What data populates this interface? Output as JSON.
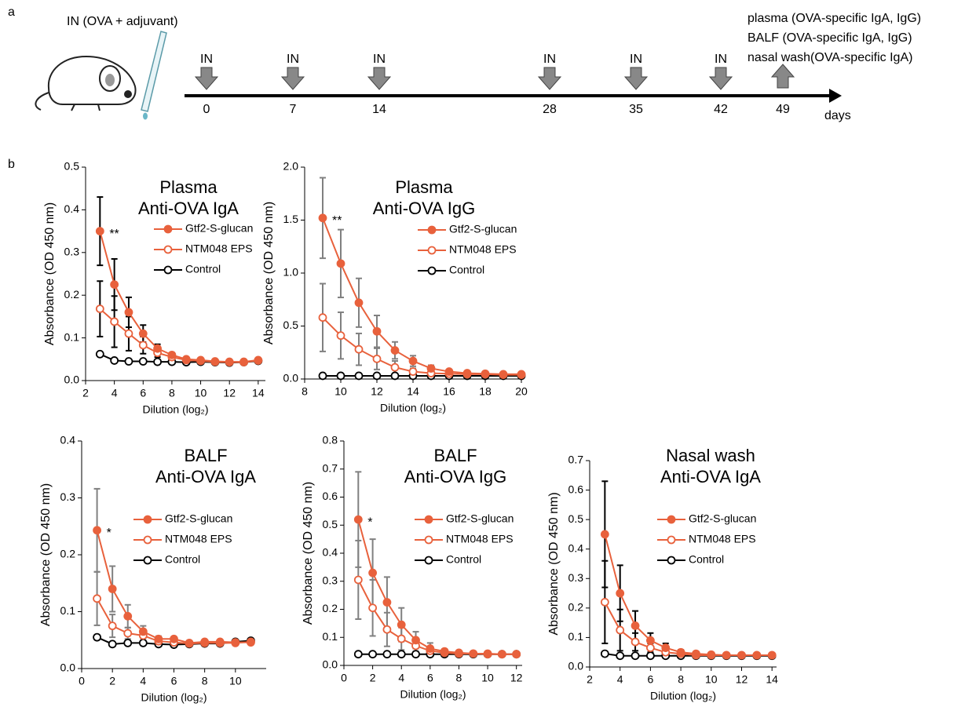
{
  "panel_labels": [
    "a",
    "b"
  ],
  "timeline": {
    "route_label": "IN (OVA + adjuvant)",
    "doses": [
      {
        "label": "IN",
        "day": 0
      },
      {
        "label": "IN",
        "day": 7
      },
      {
        "label": "IN",
        "day": 14
      },
      {
        "label": "IN",
        "day": 28
      },
      {
        "label": "IN",
        "day": 35
      },
      {
        "label": "IN",
        "day": 42
      }
    ],
    "sampling_day": 49,
    "samples": [
      "plasma (OVA-specific IgA, IgG)",
      "BALF (OVA-specific IgA, IgG)",
      "nasal wash(OVA-specific IgA)"
    ],
    "axis_label": "days"
  },
  "chart_data": [
    {
      "type": "line",
      "title": "Plasma",
      "subtitle": "Anti-OVA IgA",
      "x_label": "Dilution (log₂)",
      "y_label": "Absorbance (OD 450 nm)",
      "annotation": "**",
      "error_color": "#000000",
      "x": [
        3,
        4,
        5,
        6,
        7,
        8,
        9,
        10,
        11,
        12,
        13,
        14
      ],
      "xlim": [
        2,
        14.5
      ],
      "xticks": [
        2,
        4,
        6,
        8,
        10,
        12,
        14
      ],
      "ylim": [
        0,
        0.5
      ],
      "yticks": [
        {
          "value": 0,
          "label": "0.0"
        },
        0.1,
        0.2,
        0.3,
        0.4,
        0.5
      ],
      "series": [
        {
          "name": "Gtf2-S-glucan",
          "color": "#e8613c",
          "marker": "filled",
          "values": [
            0.35,
            0.225,
            0.16,
            0.11,
            0.075,
            0.06,
            0.05,
            0.048,
            0.045,
            0.044,
            0.044,
            0.048
          ],
          "errors": [
            0.08,
            0.06,
            0.035,
            0.02,
            0.01,
            0.005,
            0.004,
            0.004,
            0.003,
            0.003,
            0.003,
            0.003
          ]
        },
        {
          "name": "NTM048 EPS",
          "color": "#e8613c",
          "marker": "open",
          "values": [
            0.168,
            0.138,
            0.11,
            0.083,
            0.065,
            0.055,
            0.048,
            0.046,
            0.044,
            0.043,
            0.043,
            0.047
          ],
          "errors": [
            0.065,
            0.06,
            0.04,
            0.02,
            0.01,
            0.005,
            0.004,
            0.003,
            0.003,
            0.003,
            0.003,
            0.003
          ]
        },
        {
          "name": "Control",
          "color": "#000000",
          "marker": "open",
          "values": [
            0.062,
            0.047,
            0.045,
            0.045,
            0.044,
            0.044,
            0.043,
            0.044,
            0.043,
            0.042,
            0.043,
            0.046
          ]
        }
      ]
    },
    {
      "type": "line",
      "title": "Plasma",
      "subtitle": "Anti-OVA IgG",
      "x_label": "Dilution (log₂)",
      "y_label": "Absorbance (OD 450 nm)",
      "annotation": "**",
      "error_color": "#808080",
      "x": [
        9,
        10,
        11,
        12,
        13,
        14,
        15,
        16,
        17,
        18,
        19,
        20
      ],
      "xlim": [
        8,
        20
      ],
      "xticks": [
        8,
        10,
        12,
        14,
        16,
        18,
        20
      ],
      "ylim": [
        0,
        2
      ],
      "yticks": [
        {
          "value": 0,
          "label": "0.0"
        },
        0.5,
        {
          "value": 1,
          "label": "1.0"
        },
        1.5,
        {
          "value": 2,
          "label": "2.0"
        }
      ],
      "series": [
        {
          "name": "Gtf2-S-glucan",
          "color": "#e8613c",
          "marker": "filled",
          "values": [
            1.52,
            1.09,
            0.72,
            0.45,
            0.27,
            0.17,
            0.1,
            0.07,
            0.055,
            0.05,
            0.045,
            0.045
          ],
          "errors": [
            0.38,
            0.32,
            0.23,
            0.15,
            0.08,
            0.05,
            0.03,
            0.015,
            0.01,
            0.01,
            0.01,
            0.01
          ]
        },
        {
          "name": "NTM048 EPS",
          "color": "#e8613c",
          "marker": "open",
          "values": [
            0.58,
            0.41,
            0.28,
            0.19,
            0.11,
            0.07,
            0.055,
            0.05,
            0.045,
            0.045,
            0.04,
            0.04
          ],
          "errors": [
            0.32,
            0.22,
            0.15,
            0.1,
            0.06,
            0.03,
            0.015,
            0.01,
            0.01,
            0.01,
            0.01,
            0.01
          ]
        },
        {
          "name": "Control",
          "color": "#000000",
          "marker": "open",
          "values": [
            0.03,
            0.03,
            0.03,
            0.03,
            0.03,
            0.03,
            0.03,
            0.03,
            0.03,
            0.03,
            0.03,
            0.03
          ]
        }
      ]
    },
    {
      "type": "line",
      "title": "BALF",
      "subtitle": "Anti-OVA IgA",
      "x_label": "Dilution (log₂)",
      "y_label": "Absorbance (OD 450 nm)",
      "annotation": "*",
      "error_color": "#808080",
      "x": [
        1,
        2,
        3,
        4,
        5,
        6,
        7,
        8,
        9,
        10,
        11
      ],
      "xlim": [
        0,
        12
      ],
      "xticks": [
        0,
        2,
        4,
        6,
        8,
        10
      ],
      "ylim": [
        0,
        0.4
      ],
      "yticks": [
        {
          "value": 0,
          "label": "0.0"
        },
        0.1,
        0.2,
        0.3,
        0.4
      ],
      "series": [
        {
          "name": "Gtf2-S-glucan",
          "color": "#e8613c",
          "marker": "filled",
          "values": [
            0.243,
            0.14,
            0.092,
            0.065,
            0.052,
            0.052,
            0.045,
            0.047,
            0.047,
            0.046,
            0.046
          ],
          "errors": [
            0.073,
            0.04,
            0.02,
            0.01,
            0.005,
            0.004,
            0.003,
            0.003,
            0.003,
            0.003,
            0.003
          ]
        },
        {
          "name": "NTM048 EPS",
          "color": "#e8613c",
          "marker": "open",
          "values": [
            0.123,
            0.075,
            0.062,
            0.058,
            0.048,
            0.046,
            0.044,
            0.045,
            0.045,
            0.045,
            0.047
          ],
          "errors": [
            0.047,
            0.02,
            0.01,
            0.005,
            0.004,
            0.003,
            0.003,
            0.003,
            0.003,
            0.003,
            0.003
          ]
        },
        {
          "name": "Control",
          "color": "#000000",
          "marker": "open",
          "values": [
            0.055,
            0.043,
            0.045,
            0.045,
            0.043,
            0.042,
            0.043,
            0.044,
            0.044,
            0.047,
            0.049
          ]
        }
      ]
    },
    {
      "type": "line",
      "title": "BALF",
      "subtitle": "Anti-OVA IgG",
      "x_label": "Dilution (log₂)",
      "y_label": "Absorbance (OD 450 nm)",
      "annotation": "*",
      "error_color": "#808080",
      "x": [
        1,
        2,
        3,
        4,
        5,
        6,
        7,
        8,
        9,
        10,
        11,
        12
      ],
      "xlim": [
        0,
        12.4
      ],
      "xticks": [
        0,
        2,
        4,
        6,
        8,
        10,
        12
      ],
      "ylim": [
        0,
        0.8
      ],
      "yticks": [
        {
          "value": 0,
          "label": "0.0"
        },
        0.1,
        0.2,
        0.3,
        0.4,
        0.5,
        0.6,
        0.7,
        0.8
      ],
      "series": [
        {
          "name": "Gtf2-S-glucan",
          "color": "#e8613c",
          "marker": "filled",
          "values": [
            0.52,
            0.33,
            0.225,
            0.145,
            0.09,
            0.06,
            0.05,
            0.045,
            0.042,
            0.042,
            0.04,
            0.04
          ],
          "errors": [
            0.17,
            0.12,
            0.09,
            0.06,
            0.03,
            0.02,
            0.008,
            0.005,
            0.004,
            0.004,
            0.003,
            0.003
          ]
        },
        {
          "name": "NTM048 EPS",
          "color": "#e8613c",
          "marker": "open",
          "values": [
            0.305,
            0.205,
            0.128,
            0.095,
            0.07,
            0.052,
            0.045,
            0.042,
            0.042,
            0.04,
            0.04,
            0.04
          ],
          "errors": [
            0.14,
            0.1,
            0.06,
            0.04,
            0.02,
            0.008,
            0.005,
            0.004,
            0.004,
            0.003,
            0.003,
            0.003
          ]
        },
        {
          "name": "Control",
          "color": "#000000",
          "marker": "open",
          "values": [
            0.04,
            0.04,
            0.04,
            0.04,
            0.04,
            0.04,
            0.04,
            0.04,
            0.04,
            0.04,
            0.04,
            0.04
          ]
        }
      ]
    },
    {
      "type": "line",
      "title": "Nasal wash",
      "subtitle": "Anti-OVA IgA",
      "x_label": "Dilution (log₂)",
      "y_label": "Absorbance (OD 450 nm)",
      "error_color": "#000000",
      "x": [
        3,
        4,
        5,
        6,
        7,
        8,
        9,
        10,
        11,
        12,
        13,
        14
      ],
      "xlim": [
        2,
        14.3
      ],
      "xticks": [
        2,
        4,
        6,
        8,
        10,
        12,
        14
      ],
      "ylim": [
        0,
        0.7
      ],
      "yticks": [
        {
          "value": 0,
          "label": "0.0"
        },
        0.1,
        0.2,
        0.3,
        0.4,
        0.5,
        0.6,
        0.7
      ],
      "series": [
        {
          "name": "Gtf2-S-glucan",
          "color": "#e8613c",
          "marker": "filled",
          "values": [
            0.45,
            0.25,
            0.14,
            0.09,
            0.065,
            0.05,
            0.045,
            0.042,
            0.04,
            0.04,
            0.04,
            0.04
          ],
          "errors": [
            0.18,
            0.095,
            0.05,
            0.025,
            0.015,
            0.008,
            0.005,
            0.004,
            0.003,
            0.003,
            0.003,
            0.003
          ]
        },
        {
          "name": "NTM048 EPS",
          "color": "#e8613c",
          "marker": "open",
          "values": [
            0.22,
            0.125,
            0.085,
            0.065,
            0.05,
            0.045,
            0.04,
            0.04,
            0.04,
            0.04,
            0.04,
            0.04
          ],
          "errors": [
            0.14,
            0.07,
            0.03,
            0.015,
            0.008,
            0.005,
            0.004,
            0.003,
            0.003,
            0.003,
            0.003,
            0.003
          ]
        },
        {
          "name": "Control",
          "color": "#000000",
          "marker": "open",
          "values": [
            0.045,
            0.038,
            0.038,
            0.038,
            0.038,
            0.038,
            0.038,
            0.038,
            0.038,
            0.038,
            0.038,
            0.038
          ]
        }
      ]
    }
  ]
}
